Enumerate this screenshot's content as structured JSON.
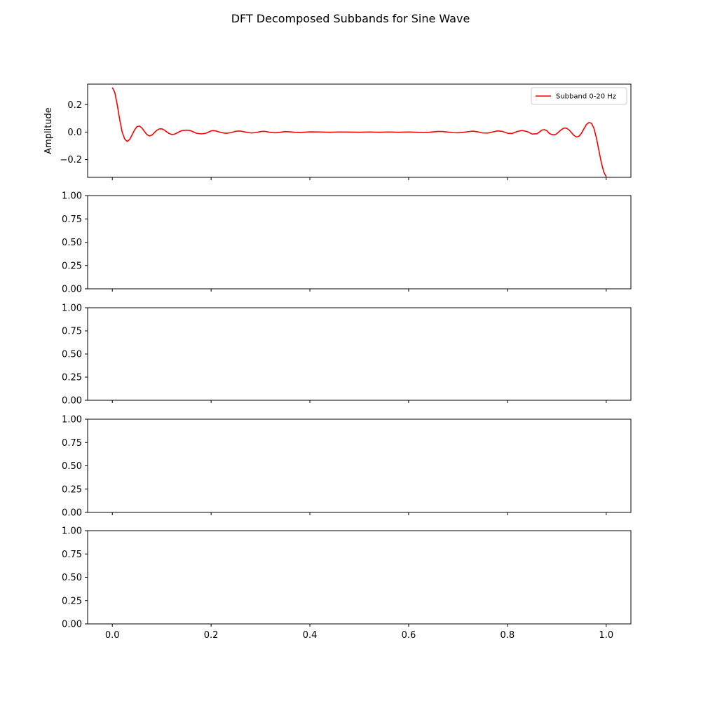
{
  "chart_data": {
    "suptitle": "DFT Decomposed Subbands for Sine Wave",
    "xlim": [
      -0.05,
      1.05
    ],
    "x_ticks": [
      0.0,
      0.2,
      0.4,
      0.6,
      0.8,
      1.0
    ],
    "x_tick_labels": [
      "0.0",
      "0.2",
      "0.4",
      "0.6",
      "0.8",
      "1.0"
    ],
    "subplots": [
      {
        "type": "line",
        "ylabel": "Amplitude",
        "ylim": [
          -0.33,
          0.35
        ],
        "y_ticks": [
          -0.2,
          0.0,
          0.2
        ],
        "y_tick_labels": [
          "−0.2",
          "0.0",
          "0.2"
        ],
        "legend_location": "upper right",
        "series": [
          {
            "name": "Subband 0-20 Hz",
            "color": "#ff0000",
            "x": [
              0.0,
              0.005,
              0.01,
              0.015,
              0.02,
              0.025,
              0.03,
              0.035,
              0.04,
              0.045,
              0.05,
              0.055,
              0.06,
              0.065,
              0.07,
              0.075,
              0.08,
              0.085,
              0.09,
              0.095,
              0.1,
              0.105,
              0.11,
              0.115,
              0.12,
              0.125,
              0.13,
              0.14,
              0.15,
              0.155,
              0.16,
              0.17,
              0.18,
              0.19,
              0.2,
              0.205,
              0.21,
              0.22,
              0.23,
              0.24,
              0.25,
              0.255,
              0.26,
              0.27,
              0.28,
              0.29,
              0.3,
              0.305,
              0.31,
              0.32,
              0.33,
              0.34,
              0.35,
              0.36,
              0.37,
              0.38,
              0.4,
              0.42,
              0.44,
              0.46,
              0.48,
              0.5,
              0.52,
              0.54,
              0.56,
              0.58,
              0.6,
              0.62,
              0.63,
              0.64,
              0.65,
              0.66,
              0.67,
              0.68,
              0.69,
              0.7,
              0.71,
              0.72,
              0.73,
              0.74,
              0.75,
              0.76,
              0.77,
              0.78,
              0.79,
              0.8,
              0.81,
              0.82,
              0.83,
              0.84,
              0.85,
              0.86,
              0.87,
              0.875,
              0.88,
              0.885,
              0.89,
              0.895,
              0.9,
              0.905,
              0.91,
              0.915,
              0.92,
              0.925,
              0.93,
              0.935,
              0.94,
              0.945,
              0.95,
              0.955,
              0.96,
              0.965,
              0.97,
              0.975,
              0.98,
              0.985,
              0.99,
              0.995,
              1.0
            ],
            "y": [
              0.325,
              0.29,
              0.2,
              0.09,
              0.0,
              -0.05,
              -0.068,
              -0.055,
              -0.02,
              0.015,
              0.04,
              0.044,
              0.03,
              0.005,
              -0.018,
              -0.028,
              -0.022,
              -0.005,
              0.013,
              0.023,
              0.024,
              0.016,
              0.002,
              -0.01,
              -0.017,
              -0.016,
              -0.008,
              0.01,
              0.014,
              0.013,
              0.008,
              -0.008,
              -0.013,
              -0.008,
              0.009,
              0.011,
              0.008,
              -0.003,
              -0.009,
              -0.004,
              0.006,
              0.008,
              0.007,
              0.0,
              -0.006,
              -0.004,
              0.004,
              0.006,
              0.005,
              -0.002,
              -0.005,
              -0.001,
              0.004,
              0.002,
              -0.002,
              -0.003,
              0.002,
              0.001,
              -0.001,
              0.001,
              0.0,
              -0.001,
              0.001,
              -0.001,
              0.001,
              -0.001,
              0.001,
              -0.002,
              -0.004,
              -0.002,
              0.002,
              0.005,
              0.004,
              0.0,
              -0.004,
              -0.005,
              -0.002,
              0.003,
              0.007,
              0.002,
              -0.006,
              -0.007,
              0.001,
              0.009,
              0.005,
              -0.008,
              -0.01,
              0.005,
              0.012,
              0.004,
              -0.014,
              -0.012,
              0.015,
              0.018,
              0.01,
              -0.01,
              -0.018,
              -0.02,
              -0.012,
              0.005,
              0.02,
              0.03,
              0.028,
              0.015,
              -0.005,
              -0.025,
              -0.036,
              -0.03,
              -0.008,
              0.025,
              0.055,
              0.07,
              0.065,
              0.03,
              -0.04,
              -0.13,
              -0.22,
              -0.29,
              -0.325
            ]
          }
        ]
      },
      {
        "type": "line",
        "ylabel": "",
        "ylim": [
          0,
          1
        ],
        "y_ticks": [
          0,
          0.25,
          0.5,
          0.75,
          1
        ],
        "y_tick_labels": [
          "0.00",
          "0.25",
          "0.50",
          "0.75",
          "1.00"
        ],
        "series": []
      },
      {
        "type": "line",
        "ylabel": "",
        "ylim": [
          0,
          1
        ],
        "y_ticks": [
          0,
          0.25,
          0.5,
          0.75,
          1
        ],
        "y_tick_labels": [
          "0.00",
          "0.25",
          "0.50",
          "0.75",
          "1.00"
        ],
        "series": []
      },
      {
        "type": "line",
        "ylabel": "",
        "ylim": [
          0,
          1
        ],
        "y_ticks": [
          0,
          0.25,
          0.5,
          0.75,
          1
        ],
        "y_tick_labels": [
          "0.00",
          "0.25",
          "0.50",
          "0.75",
          "1.00"
        ],
        "series": []
      },
      {
        "type": "line",
        "ylabel": "",
        "ylim": [
          0,
          1
        ],
        "y_ticks": [
          0,
          0.25,
          0.5,
          0.75,
          1
        ],
        "y_tick_labels": [
          "0.00",
          "0.25",
          "0.50",
          "0.75",
          "1.00"
        ],
        "series": []
      }
    ]
  }
}
